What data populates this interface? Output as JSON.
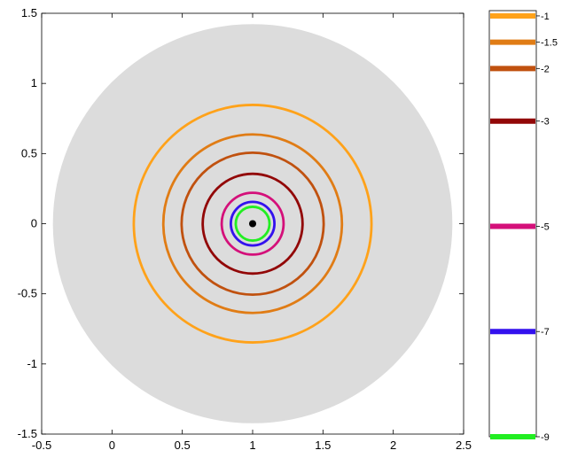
{
  "chart_data": {
    "type": "contour",
    "title": "",
    "xlabel": "",
    "ylabel": "",
    "xlim": [
      -0.5,
      2.5
    ],
    "ylim": [
      -1.5,
      1.5
    ],
    "xticks": [
      "-0.5",
      "0",
      "0.5",
      "1",
      "1.5",
      "2",
      "2.5"
    ],
    "yticks": [
      "-1.5",
      "-1",
      "-0.5",
      "0",
      "0.5",
      "1",
      "1.5"
    ],
    "xtick_values": [
      -0.5,
      0,
      0.5,
      1,
      1.5,
      2,
      2.5
    ],
    "ytick_values": [
      -1.5,
      -1,
      -0.5,
      0,
      0.5,
      1,
      1.5
    ],
    "background_disk": {
      "center": [
        1,
        0
      ],
      "radius": 1.42,
      "color": "#dcdcdc"
    },
    "center_point": {
      "x": 1,
      "y": 0,
      "color": "#000000"
    },
    "contours": [
      {
        "level": "-1",
        "value": -1,
        "radius": 0.845,
        "color": "#ffa21a"
      },
      {
        "level": "-1.5",
        "value": -1.5,
        "radius": 0.635,
        "color": "#e07c15"
      },
      {
        "level": "-2",
        "value": -2,
        "radius": 0.505,
        "color": "#c0510f"
      },
      {
        "level": "-3",
        "value": -3,
        "radius": 0.355,
        "color": "#920707"
      },
      {
        "level": "-5",
        "value": -5,
        "radius": 0.22,
        "color": "#d4107a"
      },
      {
        "level": "-7",
        "value": -7,
        "radius": 0.155,
        "color": "#3311ee"
      },
      {
        "level": "-9",
        "value": -9,
        "radius": 0.12,
        "color": "#22ee22"
      }
    ],
    "colorbar": {
      "min": -9,
      "max": -0.9,
      "placement": "right"
    }
  }
}
